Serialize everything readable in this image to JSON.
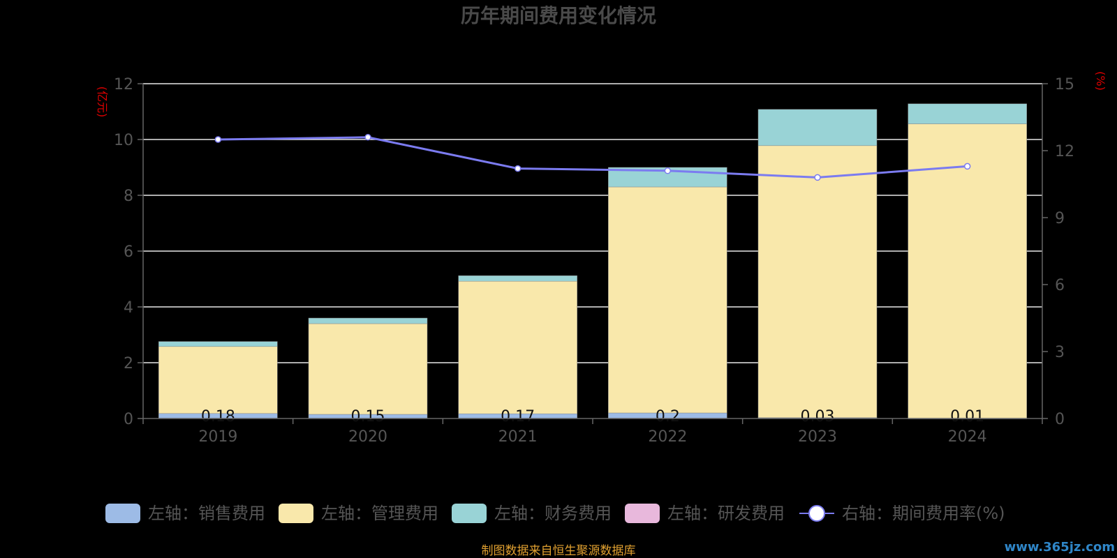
{
  "chart_data": {
    "type": "bar",
    "title": "历年期间费用变化情况",
    "categories": [
      "2019",
      "2020",
      "2021",
      "2022",
      "2023",
      "2024"
    ],
    "series": [
      {
        "name": "左轴：销售费用",
        "axis": "left",
        "color": "#9dbbe6",
        "values": [
          0.18,
          0.15,
          0.17,
          0.2,
          0.03,
          0.01
        ],
        "labels": [
          "0.18",
          "0.15",
          "0.17",
          "0.2",
          "0.03",
          "0.01"
        ]
      },
      {
        "name": "左轴：管理费用",
        "axis": "left",
        "color": "#f9e8ab",
        "values": [
          2.4,
          3.25,
          4.75,
          8.1,
          9.75,
          10.55
        ]
      },
      {
        "name": "左轴：财务费用",
        "axis": "left",
        "color": "#99d3d6",
        "values": [
          0.18,
          0.2,
          0.2,
          0.7,
          1.3,
          0.72
        ]
      },
      {
        "name": "左轴：研发费用",
        "axis": "left",
        "color": "#e8b8dc",
        "values": [
          0,
          0,
          0,
          0,
          0,
          0
        ]
      },
      {
        "name": "右轴：期间费用率(%)",
        "axis": "right",
        "type": "line",
        "color": "#7b7bf0",
        "values": [
          12.5,
          12.6,
          11.2,
          11.1,
          10.8,
          11.3
        ]
      }
    ],
    "ylim_left": [
      0,
      12
    ],
    "yticks_left": [
      "0",
      "2",
      "4",
      "6",
      "8",
      "10",
      "12"
    ],
    "ylim_right": [
      0,
      15
    ],
    "yticks_right": [
      "0",
      "3",
      "6",
      "9",
      "12",
      "15"
    ],
    "ylabel_left": "(亿元)",
    "ylabel_right": "(%)",
    "grid": true,
    "legend_position": "bottom",
    "source": "制图数据来自恒生聚源数据库",
    "watermark": "www.365jz.com"
  }
}
